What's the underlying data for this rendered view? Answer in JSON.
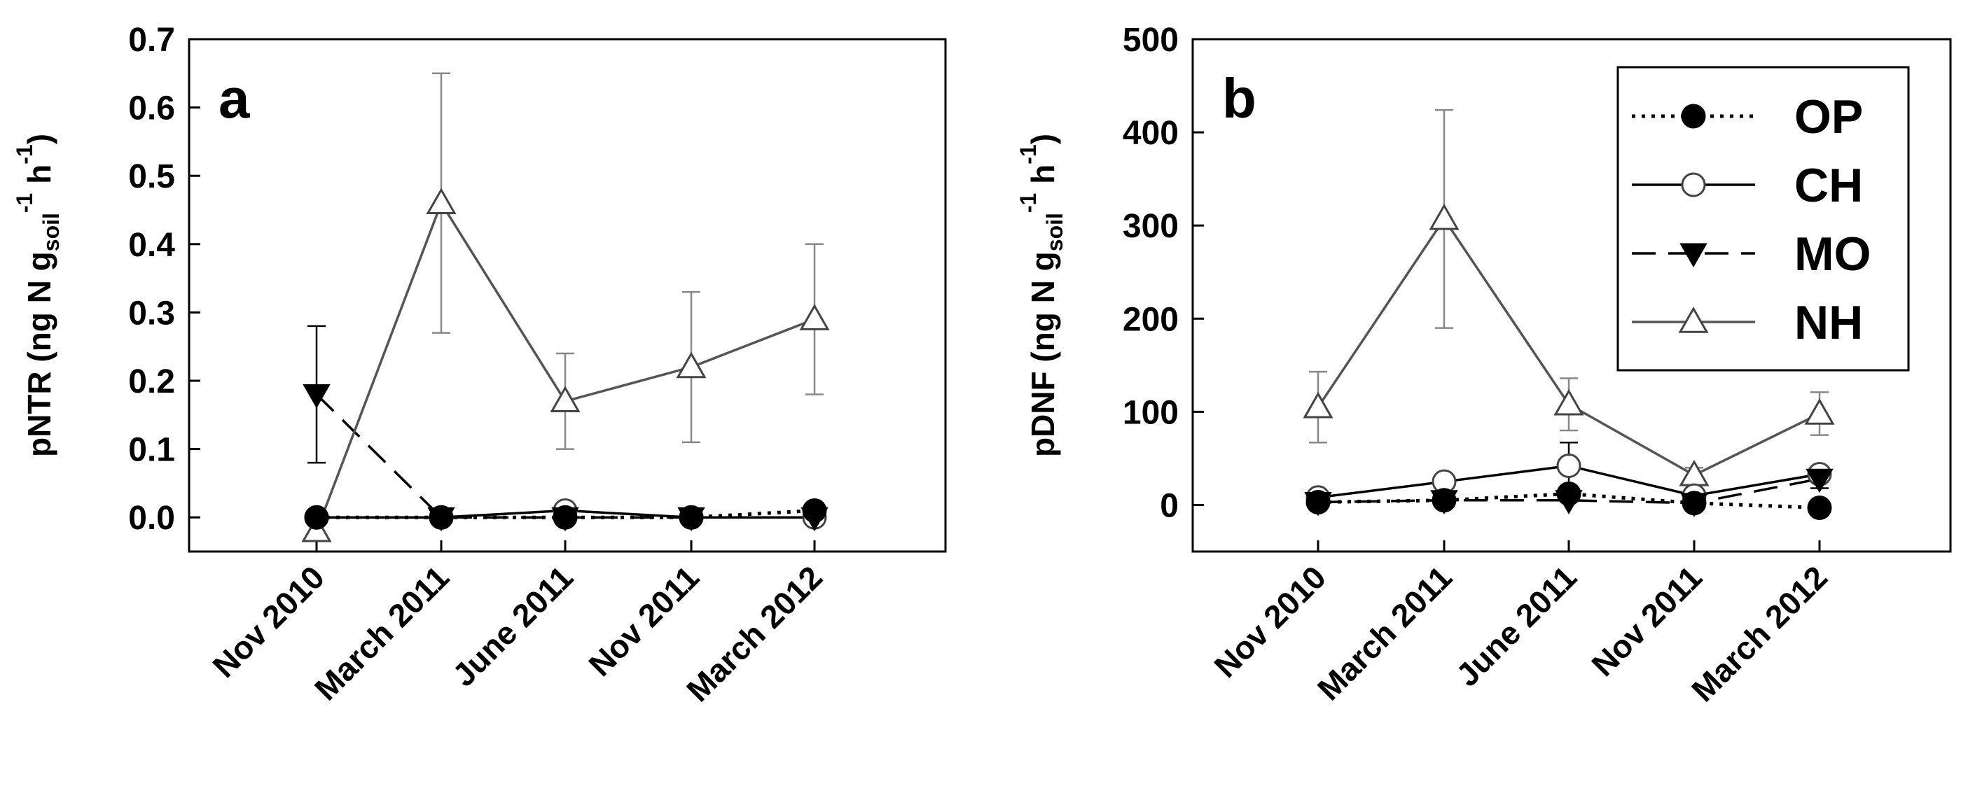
{
  "colors": {
    "ink": "#000000",
    "background": "#ffffff",
    "errorbar": "#888888",
    "nh_line": "#555555"
  },
  "series_styles": {
    "OP": {
      "marker": "filled-circle",
      "line": "dotted"
    },
    "CH": {
      "marker": "open-circle",
      "line": "solid"
    },
    "MO": {
      "marker": "filled-triangle-down",
      "line": "dashed"
    },
    "NH": {
      "marker": "open-triangle-up",
      "line": "solid"
    }
  },
  "legend": [
    {
      "key": "OP",
      "label": "OP"
    },
    {
      "key": "CH",
      "label": "CH"
    },
    {
      "key": "MO",
      "label": "MO"
    },
    {
      "key": "NH",
      "label": "NH"
    }
  ],
  "chart_data": [
    {
      "type": "line",
      "panel": "a",
      "ylabel": {
        "main": "pNTR (ng N g",
        "sub": "soil",
        "sup1": "-1",
        "mid": " h",
        "sup2": "-1",
        "end": ")"
      },
      "ylim": [
        -0.05,
        0.7
      ],
      "yticks": [
        0.0,
        0.1,
        0.2,
        0.3,
        0.4,
        0.5,
        0.6,
        0.7
      ],
      "ytick_labels": [
        "0.0",
        "0.1",
        "0.2",
        "0.3",
        "0.4",
        "0.5",
        "0.6",
        "0.7"
      ],
      "categories": [
        "Nov 2010",
        "March 2011",
        "June 2011",
        "Nov 2011",
        "March 2012"
      ],
      "series": [
        {
          "name": "OP",
          "values": [
            0.0,
            0.0,
            0.0,
            0.0,
            0.01
          ],
          "err": [
            0,
            0,
            0,
            0,
            0
          ]
        },
        {
          "name": "CH",
          "values": [
            0.0,
            0.0,
            0.01,
            0.0,
            0.0
          ],
          "err": [
            0,
            0,
            0,
            0,
            0
          ]
        },
        {
          "name": "MO",
          "values": [
            0.18,
            0.0,
            0.0,
            0.0,
            0.0
          ],
          "err": [
            0.1,
            0,
            0,
            0,
            0
          ]
        },
        {
          "name": "NH",
          "values": [
            -0.02,
            0.46,
            0.17,
            0.22,
            0.29
          ],
          "err": [
            0,
            0.19,
            0.07,
            0.11,
            0.11
          ]
        }
      ]
    },
    {
      "type": "line",
      "panel": "b",
      "ylabel": {
        "main": "pDNF (ng N g",
        "sub": "soil",
        "sup1": "-1",
        "mid": " h",
        "sup2": "-1",
        "end": ")"
      },
      "ylim": [
        -50,
        500
      ],
      "yticks": [
        0,
        100,
        200,
        300,
        400,
        500
      ],
      "ytick_labels": [
        "0",
        "100",
        "200",
        "300",
        "400",
        "500"
      ],
      "categories": [
        "Nov 2010",
        "March 2011",
        "June 2011",
        "Nov 2011",
        "March 2012"
      ],
      "series": [
        {
          "name": "OP",
          "values": [
            3,
            5,
            12,
            2,
            -3
          ],
          "err": [
            0,
            0,
            0,
            0,
            0
          ]
        },
        {
          "name": "CH",
          "values": [
            8,
            25,
            42,
            10,
            33
          ],
          "err": [
            0,
            0,
            25,
            0,
            8
          ]
        },
        {
          "name": "MO",
          "values": [
            3,
            5,
            5,
            2,
            28
          ],
          "err": [
            0,
            0,
            0,
            0,
            10
          ]
        },
        {
          "name": "NH",
          "values": [
            105,
            307,
            108,
            32,
            98
          ],
          "err": [
            38,
            117,
            28,
            8,
            23
          ]
        }
      ]
    }
  ]
}
